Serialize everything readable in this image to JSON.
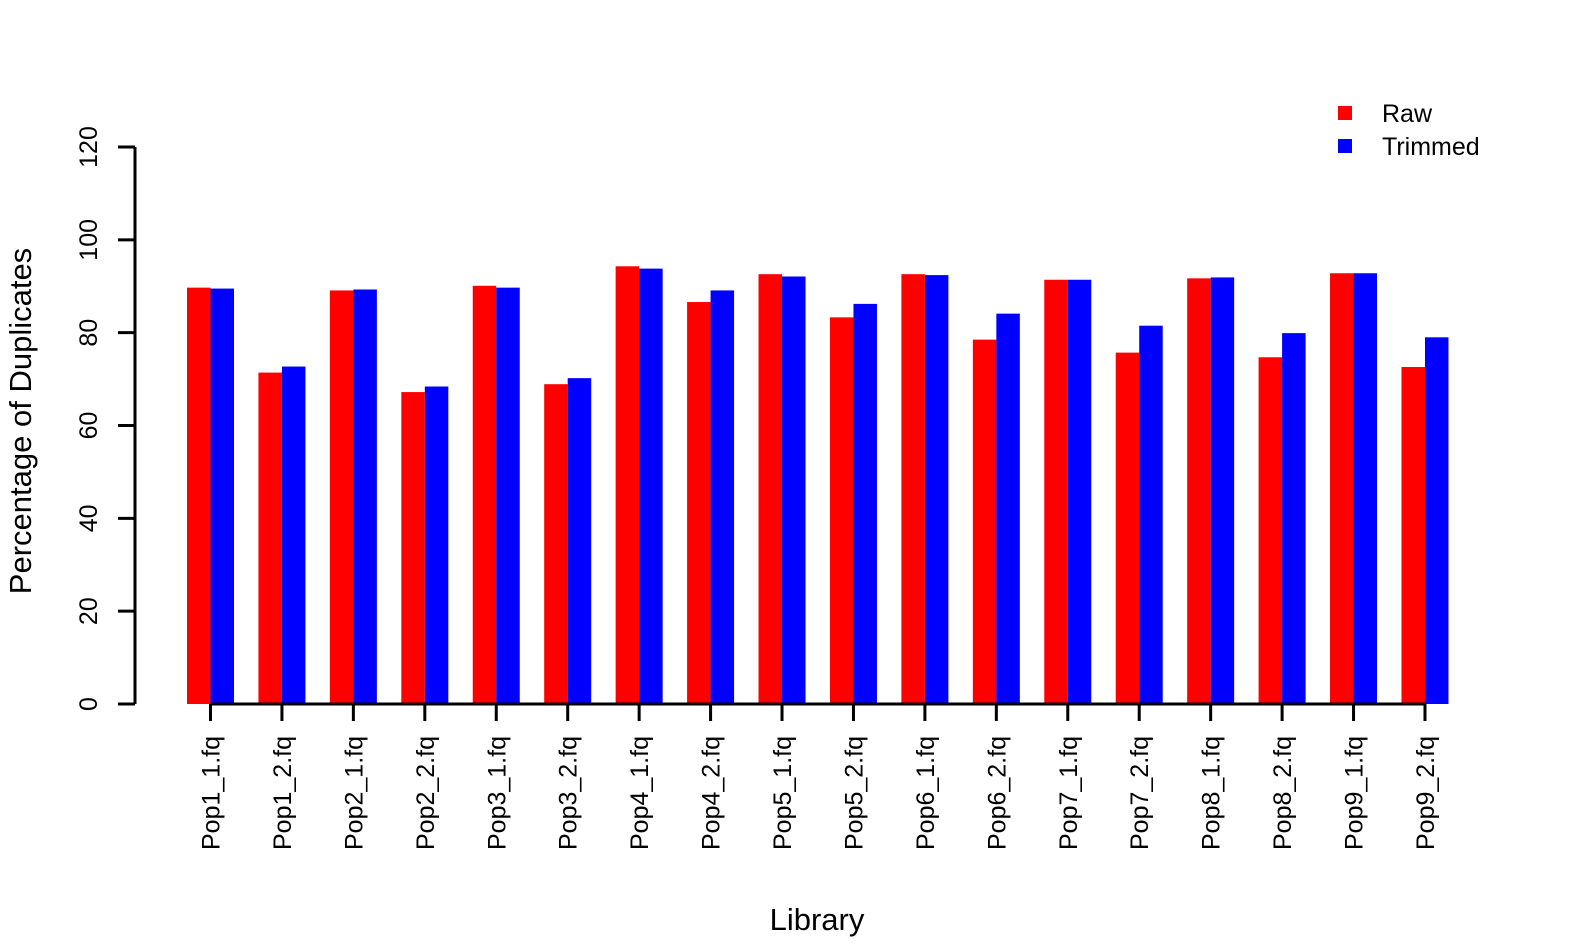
{
  "chart_data": {
    "type": "bar",
    "title": "",
    "xlabel": "Library",
    "ylabel": "Percentage of Duplicates",
    "ylim": [
      0,
      120
    ],
    "yticks": [
      "0",
      "20",
      "40",
      "60",
      "80",
      "100",
      "120"
    ],
    "grid": false,
    "legend_position": "top-right",
    "categories": [
      "Pop1_1.fq",
      "Pop1_2.fq",
      "Pop2_1.fq",
      "Pop2_2.fq",
      "Pop3_1.fq",
      "Pop3_2.fq",
      "Pop4_1.fq",
      "Pop4_2.fq",
      "Pop5_1.fq",
      "Pop5_2.fq",
      "Pop6_1.fq",
      "Pop6_2.fq",
      "Pop7_1.fq",
      "Pop7_2.fq",
      "Pop8_1.fq",
      "Pop8_2.fq",
      "Pop9_1.fq",
      "Pop9_2.fq"
    ],
    "series": [
      {
        "name": "Raw",
        "color": "#ff0000",
        "values": [
          89.7,
          71.4,
          89.1,
          67.2,
          90.1,
          68.9,
          94.3,
          86.6,
          92.6,
          83.3,
          92.6,
          78.5,
          91.4,
          75.7,
          91.7,
          74.7,
          92.8,
          72.6
        ]
      },
      {
        "name": "Trimmed",
        "color": "#0000ff",
        "values": [
          89.5,
          72.7,
          89.3,
          68.4,
          89.7,
          70.2,
          93.8,
          89.1,
          92.1,
          86.2,
          92.4,
          84.1,
          91.4,
          81.5,
          91.9,
          79.9,
          92.8,
          79.0
        ]
      }
    ]
  }
}
